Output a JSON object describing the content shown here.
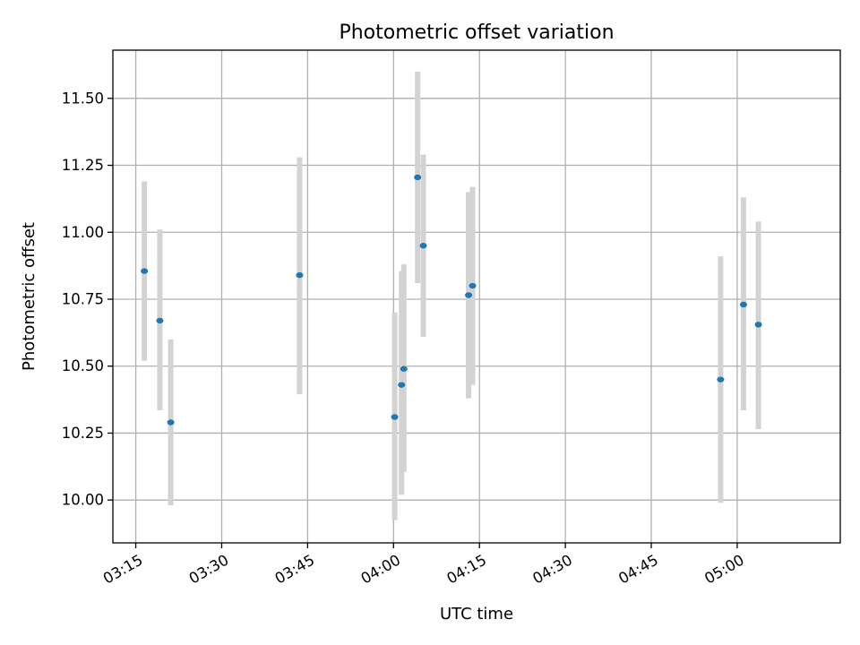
{
  "chart_data": {
    "type": "scatter",
    "title": "Photometric offset variation",
    "xlabel": "UTC time",
    "ylabel": "Photometric offset",
    "x_unit": "UTC time (HH:MM)",
    "xlim": [
      "03:11",
      "05:18"
    ],
    "ylim": [
      9.84,
      11.68
    ],
    "x_ticks": [
      "03:15",
      "03:30",
      "03:45",
      "04:00",
      "04:15",
      "04:30",
      "04:45",
      "05:00"
    ],
    "y_ticks": [
      "10.00",
      "10.25",
      "10.50",
      "10.75",
      "11.00",
      "11.25",
      "11.50"
    ],
    "grid": true,
    "marker_color": "#1f77b4",
    "errorbar_color": "#d3d3d3",
    "points": [
      {
        "x": "03:16:30",
        "y": 10.855,
        "ylow": 10.52,
        "yhigh": 11.19
      },
      {
        "x": "03:19:12",
        "y": 10.67,
        "ylow": 10.335,
        "yhigh": 11.01
      },
      {
        "x": "03:21:06",
        "y": 10.29,
        "ylow": 9.98,
        "yhigh": 10.6
      },
      {
        "x": "03:43:36",
        "y": 10.84,
        "ylow": 10.395,
        "yhigh": 11.28
      },
      {
        "x": "04:00:12",
        "y": 10.31,
        "ylow": 9.925,
        "yhigh": 10.7
      },
      {
        "x": "04:01:24",
        "y": 10.43,
        "ylow": 10.02,
        "yhigh": 10.855
      },
      {
        "x": "04:01:48",
        "y": 10.49,
        "ylow": 10.105,
        "yhigh": 10.88
      },
      {
        "x": "04:04:12",
        "y": 11.205,
        "ylow": 10.81,
        "yhigh": 11.6
      },
      {
        "x": "04:05:12",
        "y": 10.95,
        "ylow": 10.61,
        "yhigh": 11.29
      },
      {
        "x": "04:13:06",
        "y": 10.765,
        "ylow": 10.38,
        "yhigh": 11.15
      },
      {
        "x": "04:13:48",
        "y": 10.8,
        "ylow": 10.43,
        "yhigh": 11.17
      },
      {
        "x": "04:57:06",
        "y": 10.45,
        "ylow": 9.99,
        "yhigh": 10.91
      },
      {
        "x": "05:01:06",
        "y": 10.73,
        "ylow": 10.335,
        "yhigh": 11.13
      },
      {
        "x": "05:03:42",
        "y": 10.655,
        "ylow": 10.265,
        "yhigh": 11.04
      }
    ]
  }
}
